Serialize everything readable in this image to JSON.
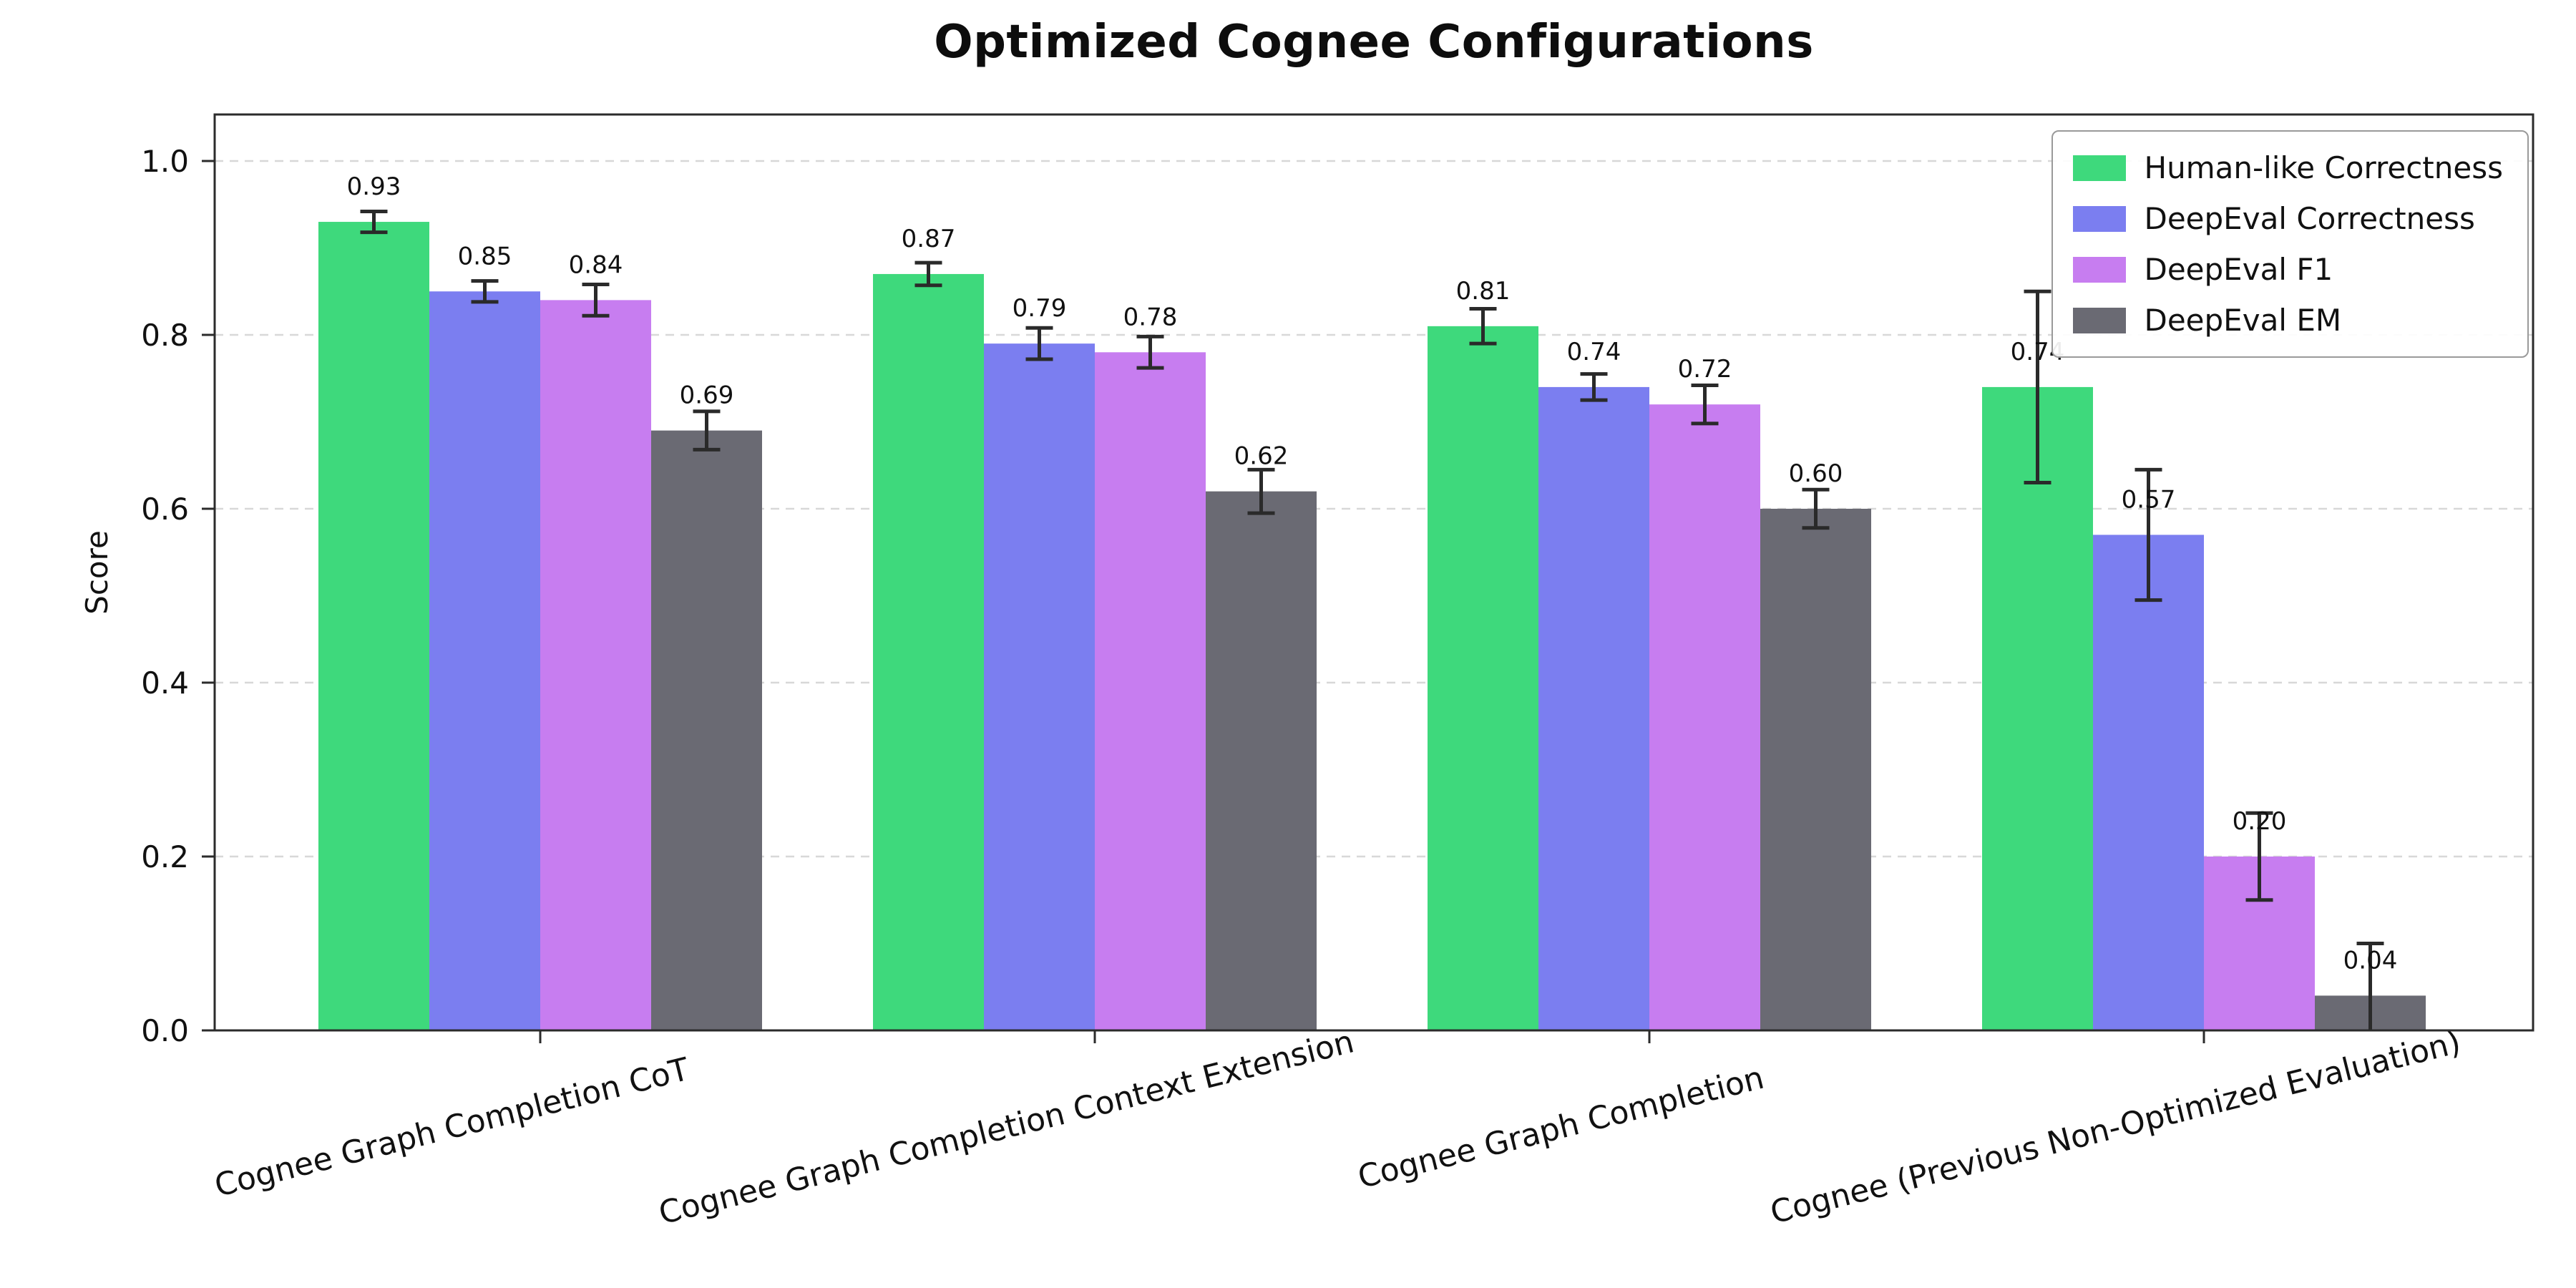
{
  "figure": {
    "title": "Optimized Cognee Configurations"
  },
  "chart_data": {
    "type": "bar",
    "title": "Optimized Cognee Configurations",
    "xlabel": "",
    "ylabel": "Score",
    "ylim": [
      0,
      1.05
    ],
    "yticks": [
      0,
      0.2,
      0.4,
      0.6,
      0.8,
      1.0
    ],
    "grid": "horizontal dashed",
    "legend_position": "upper right",
    "bar_value_labels": true,
    "error_bars": true,
    "error_bar_color": "#2a2a2a",
    "categories": [
      "Cognee Graph Completion CoT",
      "Cognee Graph Completion Context Extension",
      "Cognee Graph Completion",
      "Cognee (Previous Non-Optimized Evaluation)"
    ],
    "series": [
      {
        "name": "Human-like Correctness",
        "color": "#3ed97c",
        "values": [
          0.93,
          0.87,
          0.81,
          0.74
        ],
        "errors": [
          0.012,
          0.013,
          0.02,
          0.11
        ]
      },
      {
        "name": "DeepEval Correctness",
        "color": "#7b7ef0",
        "values": [
          0.85,
          0.79,
          0.74,
          0.57
        ],
        "errors": [
          0.012,
          0.018,
          0.015,
          0.075
        ]
      },
      {
        "name": "DeepEval F1",
        "color": "#c77df0",
        "values": [
          0.84,
          0.78,
          0.72,
          0.2
        ],
        "errors": [
          0.018,
          0.018,
          0.022,
          0.05
        ]
      },
      {
        "name": "DeepEval EM",
        "color": "#6a6a73",
        "values": [
          0.69,
          0.62,
          0.6,
          0.04
        ],
        "errors": [
          0.022,
          0.025,
          0.022,
          0.06
        ]
      }
    ]
  }
}
